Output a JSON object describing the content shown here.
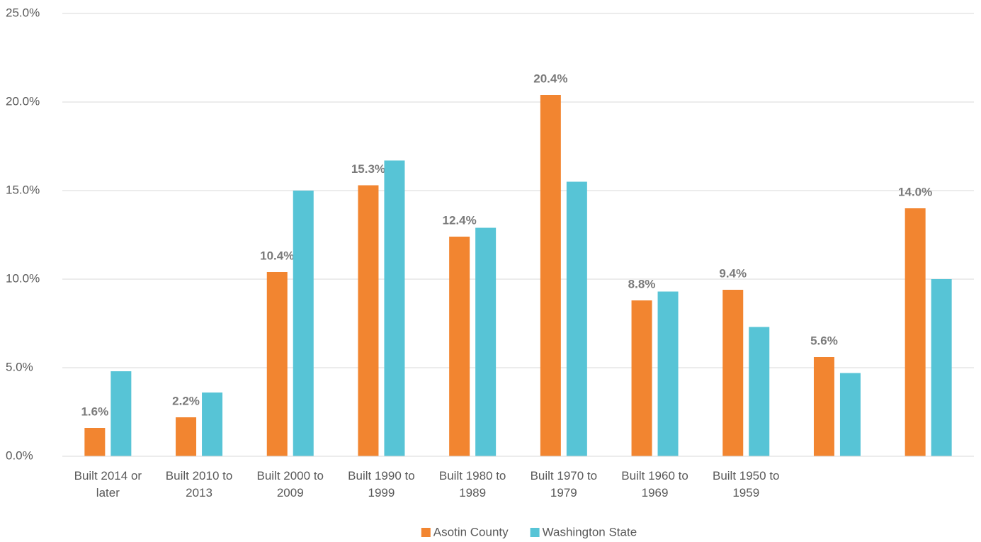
{
  "chart_data": {
    "type": "bar",
    "categories": [
      "Built 2014 or later",
      "Built 2010 to 2013",
      "Built 2000 to 2009",
      "Built 1990 to 1999",
      "Built 1980 to 1989",
      "Built 1970 to 1979",
      "Built 1960 to 1969",
      "Built 1950 to 1959",
      null,
      null
    ],
    "series": [
      {
        "name": "Asotin County",
        "color": "#f28530",
        "values": [
          1.6,
          2.2,
          10.4,
          15.3,
          12.4,
          20.4,
          8.8,
          9.4,
          5.6,
          14.0
        ],
        "value_labels": [
          "1.6%",
          "2.2%",
          "10.4%",
          "15.3%",
          "12.4%",
          "20.4%",
          "8.8%",
          "9.4%",
          "5.6%",
          "14.0%"
        ]
      },
      {
        "name": "Washington State",
        "color": "#57c4d6",
        "values": [
          4.8,
          3.6,
          15.0,
          16.7,
          12.9,
          15.5,
          9.3,
          7.3,
          4.7,
          10.0
        ]
      }
    ],
    "ylim": [
      0,
      25
    ],
    "yticks": [
      {
        "value": 0,
        "label": "0.0%"
      },
      {
        "value": 5,
        "label": "5.0%"
      },
      {
        "value": 10,
        "label": "10.0%"
      },
      {
        "value": 15,
        "label": "15.0%"
      },
      {
        "value": 20,
        "label": "20.0%"
      },
      {
        "value": 25,
        "label": "25.0%"
      }
    ],
    "grid": true,
    "legend": "bottom"
  }
}
